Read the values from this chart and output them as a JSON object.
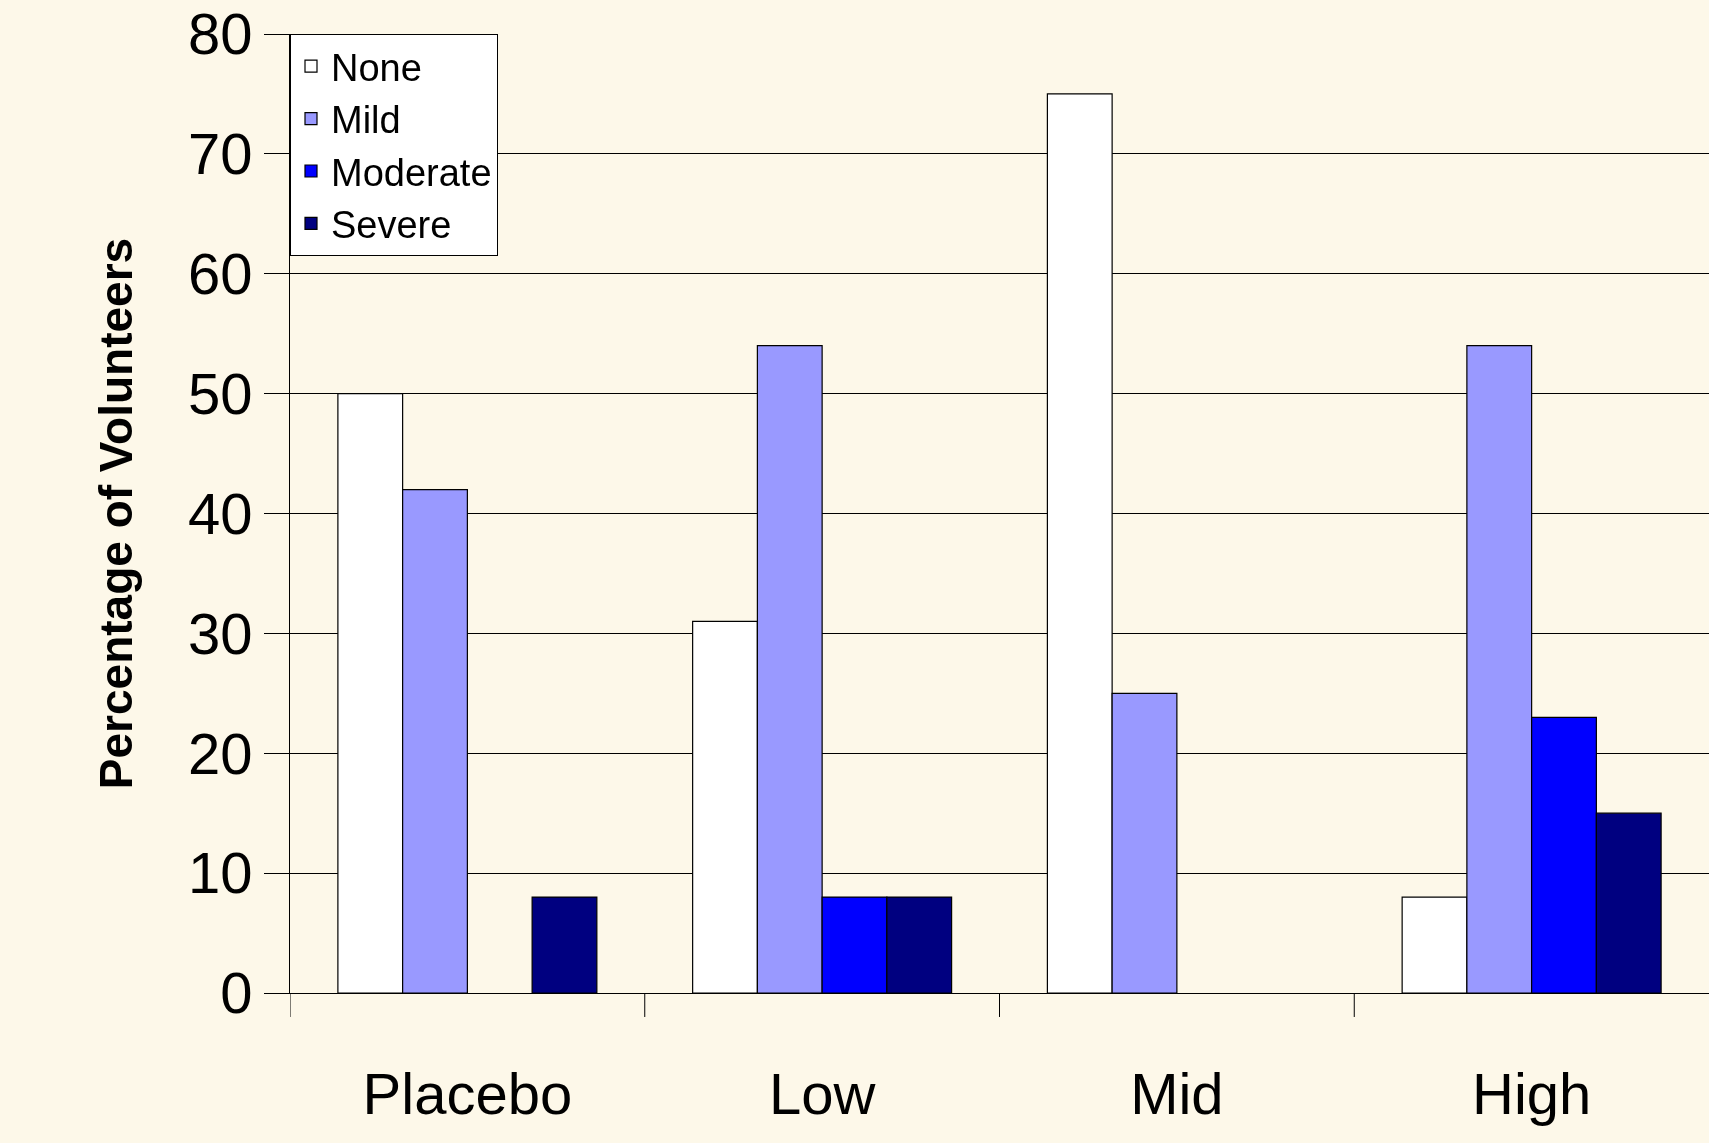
{
  "chart_data": {
    "type": "bar",
    "ylabel": "Percentage of Volunteers",
    "categories": [
      "Placebo",
      "Low",
      "Mid",
      "High"
    ],
    "series": [
      {
        "name": "None",
        "color": "#ffffff",
        "values": [
          50,
          31,
          75,
          8
        ]
      },
      {
        "name": "Mild",
        "color": "#9999ff",
        "values": [
          42,
          54,
          25,
          54
        ]
      },
      {
        "name": "Moderate",
        "color": "#0000ff",
        "values": [
          null,
          8,
          null,
          23
        ]
      },
      {
        "name": "Severe",
        "color": "#000080",
        "values": [
          8,
          8,
          null,
          15
        ]
      }
    ],
    "ylim": [
      0,
      80
    ],
    "yticks": [
      0,
      10,
      20,
      30,
      40,
      50,
      60,
      70,
      80
    ],
    "grid": "y",
    "legend": "top left"
  }
}
